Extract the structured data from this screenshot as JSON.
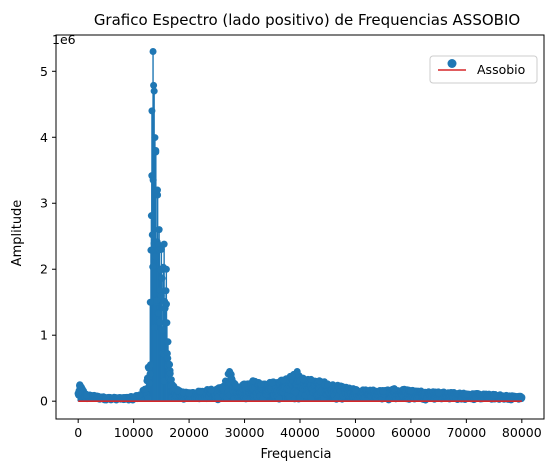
{
  "colors": {
    "series": "#1f77b4",
    "baseline": "#d62728",
    "axes": "#000000",
    "legend_border": "#cccccc"
  },
  "chart_data": {
    "type": "scatter",
    "style": "stem plot (markers on stems with red baseline)",
    "title": "Grafico Espectro (lado positivo) de Frequencias ASSOBIO",
    "xlabel": "Frequencia",
    "ylabel": "Amplitude",
    "y_offset_label": "1e6",
    "xlim": [
      -4000,
      84000
    ],
    "ylim": [
      -270000,
      5550000
    ],
    "x_ticks": [
      0,
      10000,
      20000,
      30000,
      40000,
      50000,
      60000,
      70000,
      80000
    ],
    "x_tick_labels": [
      "0",
      "10000",
      "20000",
      "30000",
      "40000",
      "50000",
      "60000",
      "70000",
      "80000"
    ],
    "y_ticks": [
      0,
      1000000,
      2000000,
      3000000,
      4000000,
      5000000
    ],
    "y_tick_labels": [
      "0",
      "1",
      "2",
      "3",
      "4",
      "5"
    ],
    "legend": {
      "placement": "upper right",
      "entries": [
        "Assobio"
      ]
    },
    "grid": false,
    "baseline_value": 0,
    "series": [
      {
        "name": "Assobio",
        "x_range": [
          0,
          80000
        ],
        "envelope_x": [
          0,
          300,
          1500,
          5000,
          8000,
          10000,
          11000,
          12000,
          12500,
          13000,
          13300,
          13500,
          13700,
          14000,
          14300,
          14600,
          15000,
          15500,
          15900,
          16200,
          16600,
          17000,
          17500,
          18000,
          19000,
          20000,
          22000,
          24000,
          26000,
          27300,
          28500,
          30000,
          31500,
          33000,
          35000,
          37000,
          38500,
          39500,
          40500,
          42000,
          43500,
          45000,
          50000,
          55000,
          57000,
          60000,
          65000,
          70000,
          75000,
          80000
        ],
        "envelope_y": [
          120000,
          250000,
          90000,
          50000,
          40000,
          60000,
          90000,
          180000,
          350000,
          1500000,
          4400000,
          5300000,
          4700000,
          3800000,
          3200000,
          2600000,
          2300000,
          2380000,
          2000000,
          900000,
          420000,
          250000,
          180000,
          160000,
          130000,
          120000,
          150000,
          170000,
          200000,
          450000,
          230000,
          260000,
          310000,
          260000,
          280000,
          320000,
          380000,
          450000,
          340000,
          330000,
          310000,
          260000,
          170000,
          150000,
          190000,
          160000,
          130000,
          110000,
          90000,
          60000
        ],
        "noise_floor": 15000
      }
    ]
  }
}
